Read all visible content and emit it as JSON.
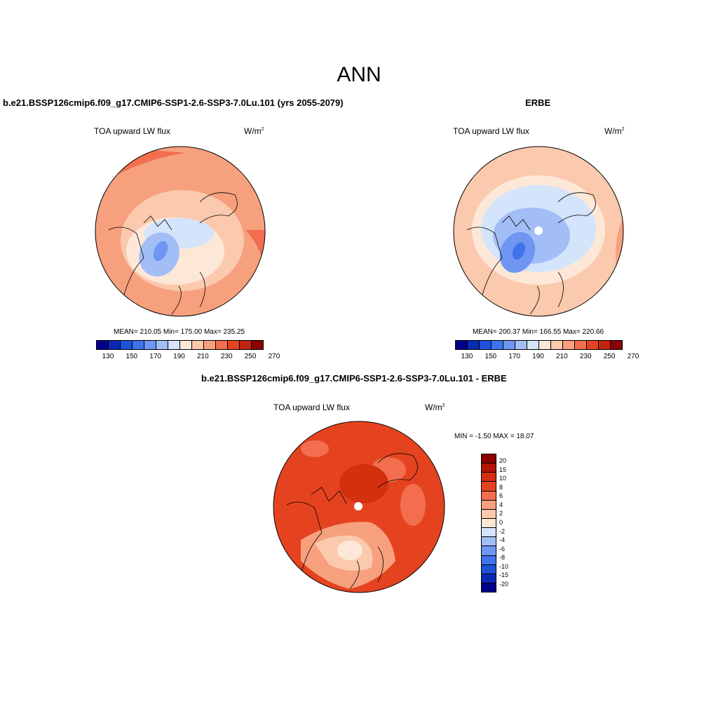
{
  "main_title": "ANN",
  "panels": [
    {
      "title": "b.e21.BSSP126cmip6.f09_g17.CMIP6-SSP1-2.6-SSP3-7.0Lu.101 (yrs 2055-2079)",
      "variable": "TOA upward LW flux",
      "units": "W/m",
      "units_sup": "2",
      "stats": "MEAN= 210.05  Min= 175.00  Max= 235.25",
      "colorbar_ticks": [
        "130",
        "150",
        "170",
        "190",
        "210",
        "230",
        "250",
        "270"
      ]
    },
    {
      "title": "ERBE",
      "variable": "TOA upward LW flux",
      "units": "W/m",
      "units_sup": "2",
      "stats": "MEAN= 200.37  Min= 166.55  Max= 220.66",
      "colorbar_ticks": [
        "130",
        "150",
        "170",
        "190",
        "210",
        "230",
        "250",
        "270"
      ]
    },
    {
      "title": "b.e21.BSSP126cmip6.f09_g17.CMIP6-SSP1-2.6-SSP3-7.0Lu.101 - ERBE",
      "variable": "TOA upward LW flux",
      "units": "W/m",
      "units_sup": "2",
      "stats": "MIN =  -1.50 MAX =  18.07",
      "colorbar_ticks": [
        "20",
        "15",
        "10",
        "8",
        "6",
        "4",
        "2",
        "0",
        "-2",
        "-4",
        "-6",
        "-8",
        "-10",
        "-15",
        "-20"
      ]
    }
  ],
  "colors": {
    "abs_scale": [
      "#00008b",
      "#0a2ab5",
      "#1e50d8",
      "#3f73ec",
      "#6f96f2",
      "#a3bdf6",
      "#d3e4fb",
      "#fde8d8",
      "#fbc9ad",
      "#f7a07e",
      "#f26e4e",
      "#e5431f",
      "#c22410",
      "#8b0000"
    ],
    "diff_scale": [
      "#8b0000",
      "#b41505",
      "#d3300f",
      "#e5431f",
      "#f26e4e",
      "#f7a07e",
      "#fbc9ad",
      "#fde8d8",
      "#d3e4fb",
      "#a3bdf6",
      "#6f96f2",
      "#3f73ec",
      "#1e50d8",
      "#0a2ab5",
      "#00008b"
    ]
  }
}
